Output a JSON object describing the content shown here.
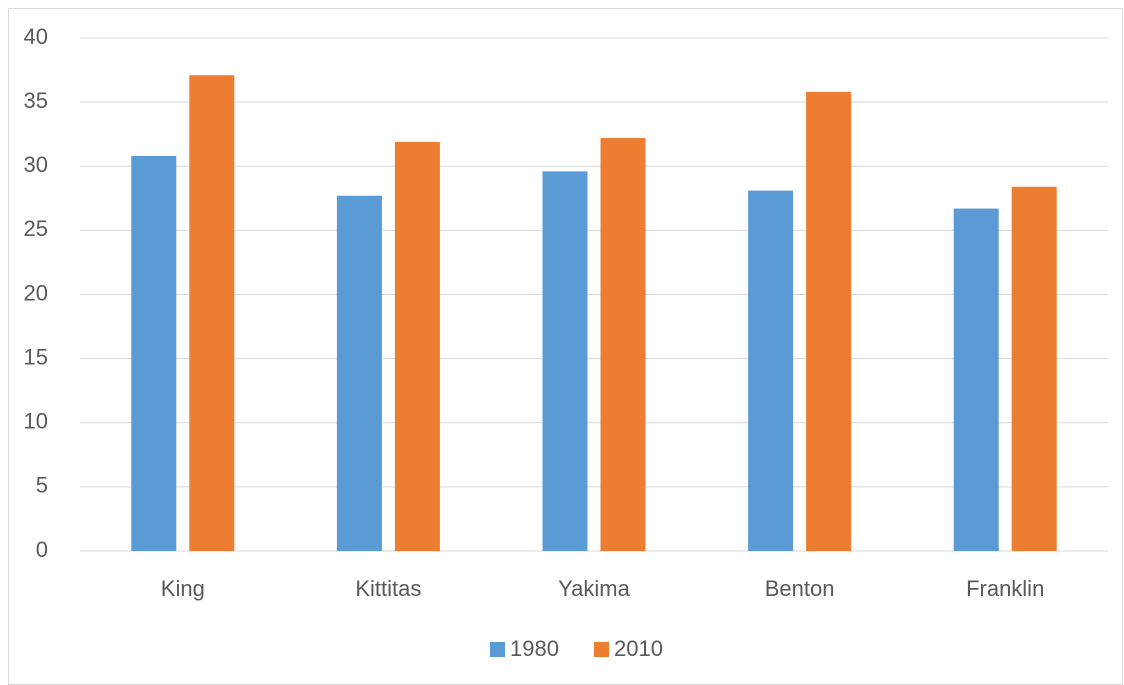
{
  "chart_data": {
    "type": "bar",
    "categories": [
      "King",
      "Kittitas",
      "Yakima",
      "Benton",
      "Franklin"
    ],
    "series": [
      {
        "name": "1980",
        "color": "#5b9bd5",
        "values": [
          30.8,
          27.7,
          29.6,
          28.1,
          26.7
        ]
      },
      {
        "name": "2010",
        "color": "#ed7d31",
        "values": [
          37.1,
          31.9,
          32.2,
          35.8,
          28.4
        ]
      }
    ],
    "ylim": [
      0,
      40
    ],
    "yticks": [
      0,
      5,
      10,
      15,
      20,
      25,
      30,
      35,
      40
    ],
    "grid": true,
    "legend": "bottom"
  }
}
